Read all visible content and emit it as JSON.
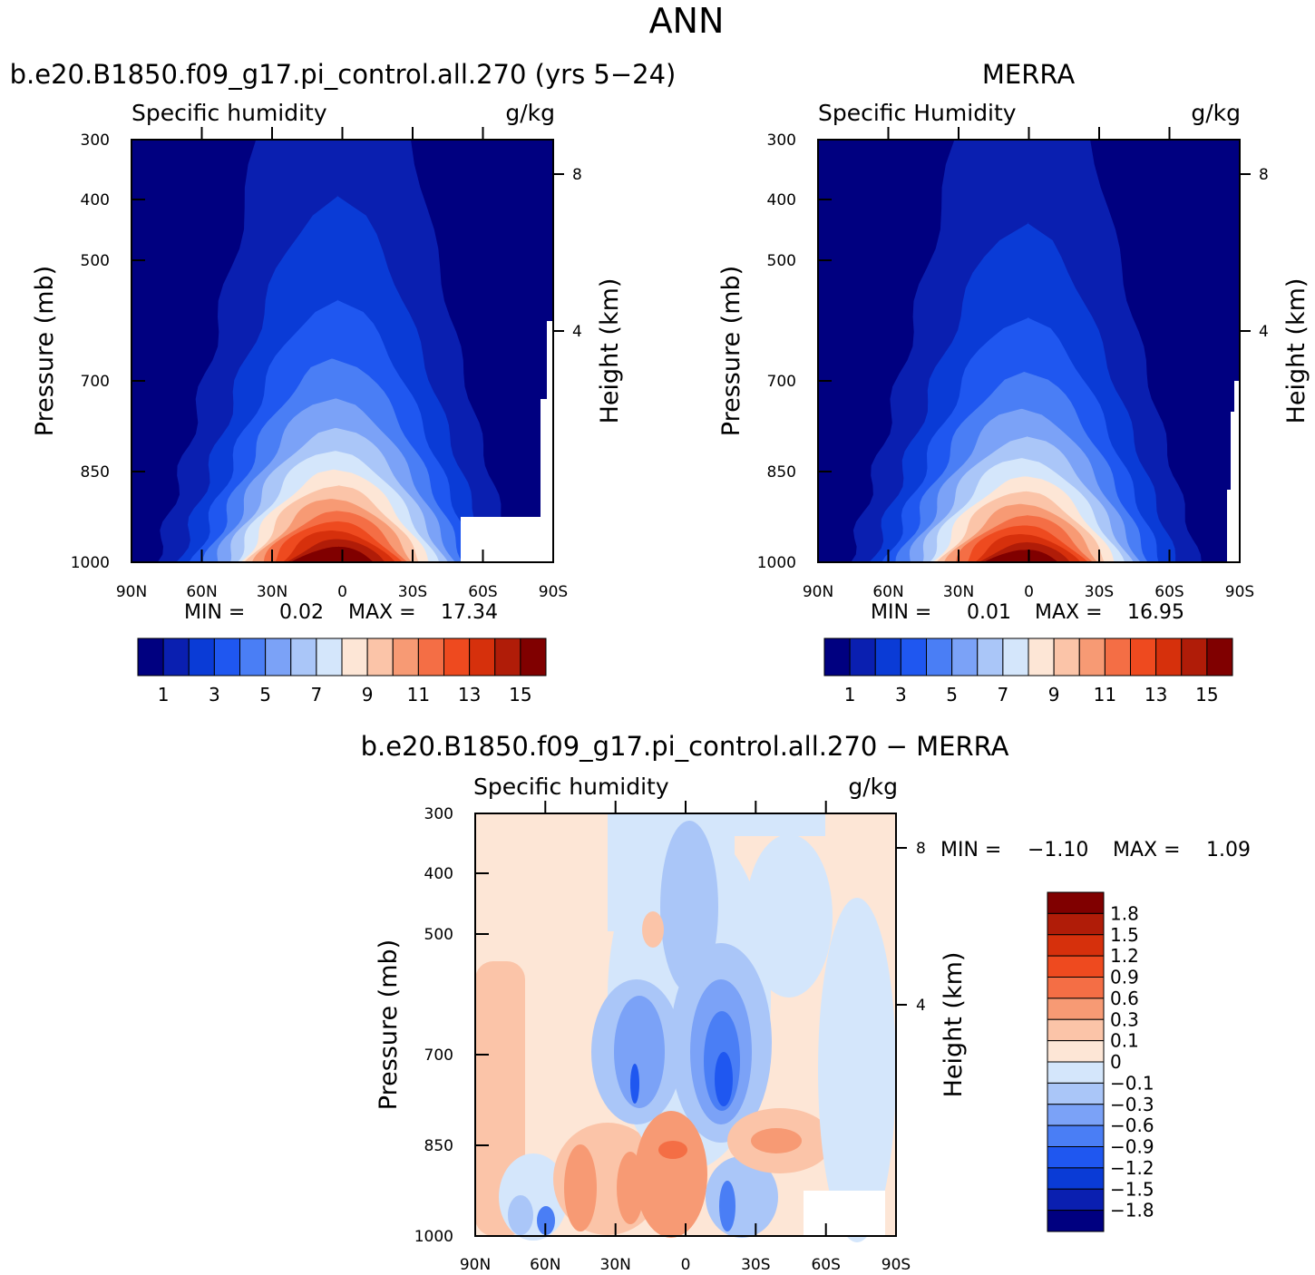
{
  "figure": {
    "title": "ANN"
  },
  "chart_data": [
    {
      "type": "heatmap",
      "panel": "model",
      "title": "b.e20.B1850.f09_g17.pi_control.all.270 (yrs 5−24)",
      "subtitle_left": "Specific humidity",
      "subtitle_right": "g/kg",
      "ylabel": "Pressure (mb)",
      "ylabel_right": "Height (km)",
      "x_ticks": [
        "90N",
        "60N",
        "30N",
        "0",
        "30S",
        "60S",
        "90S"
      ],
      "y_ticks": [
        "300",
        "400",
        "500",
        "700",
        "850",
        "1000"
      ],
      "y_ticks_right": [
        "8",
        "4"
      ],
      "min_label": "MIN =",
      "min_value": "0.02",
      "max_label": "MAX =",
      "max_value": "17.34",
      "colorbar_labels": [
        "1",
        "3",
        "5",
        "7",
        "9",
        "11",
        "13",
        "15"
      ],
      "field_peak": 17.34,
      "field_center_latitude": 3,
      "field_half_width_deg": 48,
      "field_decay_pressure_mb": 300
    },
    {
      "type": "heatmap",
      "panel": "obs",
      "title": "MERRA",
      "subtitle_left": "Specific Humidity",
      "subtitle_right": "g/kg",
      "ylabel": "Pressure (mb)",
      "ylabel_right": "Height (km)",
      "x_ticks": [
        "90N",
        "60N",
        "30N",
        "0",
        "30S",
        "60S",
        "90S"
      ],
      "y_ticks": [
        "300",
        "400",
        "500",
        "700",
        "850",
        "1000"
      ],
      "y_ticks_right": [
        "8",
        "4"
      ],
      "min_label": "MIN =",
      "min_value": "0.01",
      "max_label": "MAX =",
      "max_value": "16.95",
      "colorbar_labels": [
        "1",
        "3",
        "5",
        "7",
        "9",
        "11",
        "13",
        "15"
      ],
      "field_peak": 16.95,
      "field_center_latitude": 2,
      "field_half_width_deg": 47,
      "field_decay_pressure_mb": 290
    },
    {
      "type": "heatmap",
      "panel": "diff",
      "title": "b.e20.B1850.f09_g17.pi_control.all.270 − MERRA",
      "subtitle_left": "Specific humidity",
      "subtitle_right": "g/kg",
      "ylabel": "Pressure (mb)",
      "ylabel_right": "Height (km)",
      "x_ticks": [
        "90N",
        "60N",
        "30N",
        "0",
        "30S",
        "60S",
        "90S"
      ],
      "y_ticks": [
        "300",
        "400",
        "500",
        "700",
        "850",
        "1000"
      ],
      "y_ticks_right": [
        "8",
        "4"
      ],
      "min_label": "MIN =",
      "min_value": "−1.10",
      "max_label": "MAX =",
      "max_value": "1.09",
      "colorbar_labels": [
        "1.8",
        "1.5",
        "1.2",
        "0.9",
        "0.6",
        "0.3",
        "0.1",
        "0",
        "−0.1",
        "−0.3",
        "−0.6",
        "−0.9",
        "−1.2",
        "−1.5",
        "−1.8"
      ]
    }
  ],
  "colors": {
    "absolute_levels": [
      "#000080",
      "#0a1fb0",
      "#0a3bd6",
      "#1f57f0",
      "#4a7ef5",
      "#7ba2f7",
      "#aac6f8",
      "#d4e6fb",
      "#fde6d6",
      "#fbc4a8",
      "#f79a74",
      "#f46e45",
      "#ee4a1f",
      "#d6300c",
      "#b01c08",
      "#800000"
    ],
    "difference_levels": [
      "#800000",
      "#b01c08",
      "#d6300c",
      "#ee4a1f",
      "#f46e45",
      "#f79a74",
      "#fbc4a8",
      "#fde6d6",
      "#d4e6fb",
      "#aac6f8",
      "#7ba2f7",
      "#4a7ef5",
      "#1f57f0",
      "#0a3bd6",
      "#0a1fb0",
      "#000080"
    ]
  }
}
